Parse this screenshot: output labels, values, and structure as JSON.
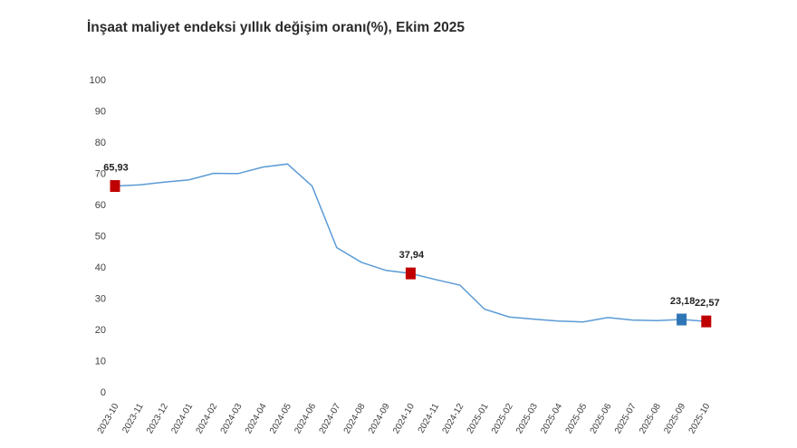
{
  "chart_data": {
    "type": "line",
    "title": "İnşaat maliyet endeksi yıllık değişim oranı(%), Ekim 2025",
    "xlabel": "",
    "ylabel": "",
    "ylim": [
      0,
      100
    ],
    "y_ticks": [
      "0",
      "10",
      "20",
      "30",
      "40",
      "50",
      "60",
      "70",
      "80",
      "90",
      "100"
    ],
    "grid": false,
    "legend": "none",
    "categories": [
      "2023-10",
      "2023-11",
      "2023-12",
      "2024-01",
      "2024-02",
      "2024-03",
      "2024-04",
      "2024-05",
      "2024-06",
      "2024-07",
      "2024-08",
      "2024-09",
      "2024-10",
      "2024-11",
      "2024-12",
      "2025-01",
      "2025-02",
      "2025-03",
      "2025-04",
      "2025-05",
      "2025-06",
      "2025-07",
      "2025-08",
      "2025-09",
      "2025-10"
    ],
    "values": [
      65.93,
      66.3,
      67.2,
      67.9,
      70.0,
      69.9,
      72.0,
      73.0,
      65.9,
      46.2,
      41.5,
      38.9,
      37.94,
      36.0,
      34.2,
      26.5,
      24.0,
      23.3,
      22.7,
      22.4,
      23.8,
      23.0,
      22.8,
      23.18,
      22.57
    ],
    "line_color": "#5b9bd5",
    "highlights": [
      {
        "index": 0,
        "label": "65,93",
        "color": "#c00000"
      },
      {
        "index": 12,
        "label": "37,94",
        "color": "#c00000"
      },
      {
        "index": 23,
        "label": "23,18",
        "color": "#2e75b6"
      },
      {
        "index": 24,
        "label": "22,57",
        "color": "#c00000"
      }
    ]
  }
}
